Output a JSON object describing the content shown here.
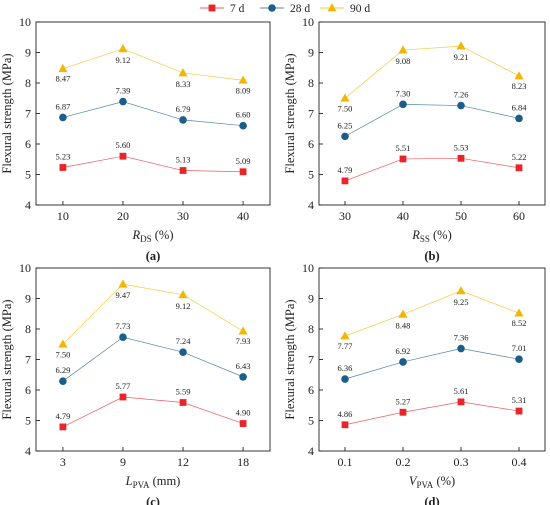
{
  "legend": [
    {
      "name": "7 d",
      "color": "#e8262a",
      "marker": "square"
    },
    {
      "name": "28 d",
      "color": "#1b5e8c",
      "marker": "circle"
    },
    {
      "name": "90 d",
      "color": "#f2b705",
      "marker": "triangle"
    }
  ],
  "chart_data": [
    {
      "type": "line",
      "tag": "(a)",
      "categories": [
        "10",
        "20",
        "30",
        "40"
      ],
      "xlabel_main": "R",
      "xlabel_sub": "DS",
      "xlabel_unit": " (%)",
      "ylabel": "Flexural strength (MPa)",
      "ylim": [
        4,
        10
      ],
      "yticks": [
        "4",
        "5",
        "6",
        "7",
        "8",
        "9",
        "10"
      ],
      "grid": false,
      "series": [
        {
          "name": "7 d",
          "values": [
            5.23,
            5.6,
            5.13,
            5.09
          ],
          "labels": [
            "5.23",
            "5.60",
            "5.13",
            "5.09"
          ]
        },
        {
          "name": "28 d",
          "values": [
            6.87,
            7.39,
            6.79,
            6.6
          ],
          "labels": [
            "6.87",
            "7.39",
            "6.79",
            "6.60"
          ]
        },
        {
          "name": "90 d",
          "values": [
            8.47,
            9.12,
            8.33,
            8.09
          ],
          "labels": [
            "8.47",
            "9.12",
            "8.33",
            "8.09"
          ]
        }
      ]
    },
    {
      "type": "line",
      "tag": "(b)",
      "categories": [
        "30",
        "40",
        "50",
        "60"
      ],
      "xlabel_main": "R",
      "xlabel_sub": "SS",
      "xlabel_unit": " (%)",
      "ylabel": "Flexural strength (MPa)",
      "ylim": [
        4,
        10
      ],
      "yticks": [
        "4",
        "5",
        "6",
        "7",
        "8",
        "9",
        "10"
      ],
      "grid": false,
      "series": [
        {
          "name": "7 d",
          "values": [
            4.79,
            5.51,
            5.53,
            5.22
          ],
          "labels": [
            "4.79",
            "5.51",
            "5.53",
            "5.22"
          ]
        },
        {
          "name": "28 d",
          "values": [
            6.25,
            7.3,
            7.26,
            6.84
          ],
          "labels": [
            "6.25",
            "7.30",
            "7.26",
            "6.84"
          ]
        },
        {
          "name": "90 d",
          "values": [
            7.5,
            9.08,
            9.21,
            8.23
          ],
          "labels": [
            "7.50",
            "9.08",
            "9.21",
            "8.23"
          ]
        }
      ]
    },
    {
      "type": "line",
      "tag": "(c)",
      "categories": [
        "3",
        "9",
        "12",
        "18"
      ],
      "xlabel_main": "L",
      "xlabel_sub": "PVA",
      "xlabel_unit": " (mm)",
      "ylabel": "Flexural strength (MPa)",
      "ylim": [
        4,
        10
      ],
      "yticks": [
        "4",
        "5",
        "6",
        "7",
        "8",
        "9",
        "10"
      ],
      "grid": false,
      "series": [
        {
          "name": "7 d",
          "values": [
            4.79,
            5.77,
            5.59,
            4.9
          ],
          "labels": [
            "4.79",
            "5.77",
            "5.59",
            "4.90"
          ]
        },
        {
          "name": "28 d",
          "values": [
            6.29,
            7.73,
            7.24,
            6.43
          ],
          "labels": [
            "6.29",
            "7.73",
            "7.24",
            "6.43"
          ]
        },
        {
          "name": "90 d",
          "values": [
            7.5,
            9.47,
            9.12,
            7.93
          ],
          "labels": [
            "7.50",
            "9.47",
            "9.12",
            "7.93"
          ]
        }
      ]
    },
    {
      "type": "line",
      "tag": "(d)",
      "categories": [
        "0.1",
        "0.2",
        "0.3",
        "0.4"
      ],
      "xlabel_main": "V",
      "xlabel_sub": "PVA",
      "xlabel_unit": " (%)",
      "ylabel": "Flexural strength (MPa)",
      "ylim": [
        4,
        10
      ],
      "yticks": [
        "4",
        "5",
        "6",
        "7",
        "8",
        "9",
        "10"
      ],
      "grid": false,
      "series": [
        {
          "name": "7 d",
          "values": [
            4.86,
            5.27,
            5.61,
            5.31
          ],
          "labels": [
            "4.86",
            "5.27",
            "5.61",
            "5.31"
          ]
        },
        {
          "name": "28 d",
          "values": [
            6.36,
            6.92,
            7.36,
            7.01
          ],
          "labels": [
            "6.36",
            "6.92",
            "7.36",
            "7.01"
          ]
        },
        {
          "name": "90 d",
          "values": [
            7.77,
            8.48,
            9.25,
            8.52
          ],
          "labels": [
            "7.77",
            "8.48",
            "9.25",
            "8.52"
          ]
        }
      ]
    }
  ]
}
